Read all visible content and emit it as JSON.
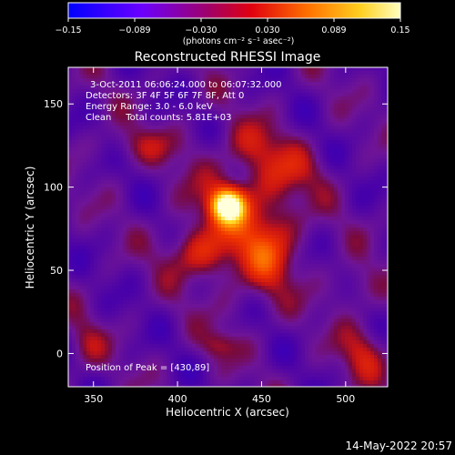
{
  "chart_data": {
    "type": "heatmap",
    "title": "Reconstructed RHESSI Image",
    "xlabel": "Heliocentric X (arcsec)",
    "ylabel": "Heliocentric Y (arcsec)",
    "xlim": [
      335,
      525
    ],
    "ylim": [
      -20,
      172
    ],
    "xticks": [
      350,
      400,
      450,
      500
    ],
    "yticks": [
      0,
      50,
      100,
      150
    ],
    "colorbar": {
      "label_html": "(photons cm⁻² s⁻¹ asec⁻²)",
      "ticks": [
        "−0.15",
        "−0.089",
        "−0.030",
        "0.030",
        "0.089",
        "0.15"
      ],
      "range": [
        -0.15,
        0.15
      ],
      "colormap": [
        "#0000ff",
        "#8a00ff",
        "#c0105a",
        "#ff2000",
        "#ff9000",
        "#ffff40",
        "#ffffff"
      ]
    },
    "annotations": [
      "3-Oct-2011 06:06:24.000 to 06:07:32.000",
      "Detectors: 3F 4F 5F 6F 7F 8F, Att 0",
      "Energy Range: 3.0 - 6.0 keV",
      "Clean     Total counts: 5.81E+03"
    ],
    "peak_label": "Position of Peak = [430,89]",
    "peak": {
      "x": 430,
      "y": 89
    }
  },
  "timestamp": "14-May-2022 20:57"
}
